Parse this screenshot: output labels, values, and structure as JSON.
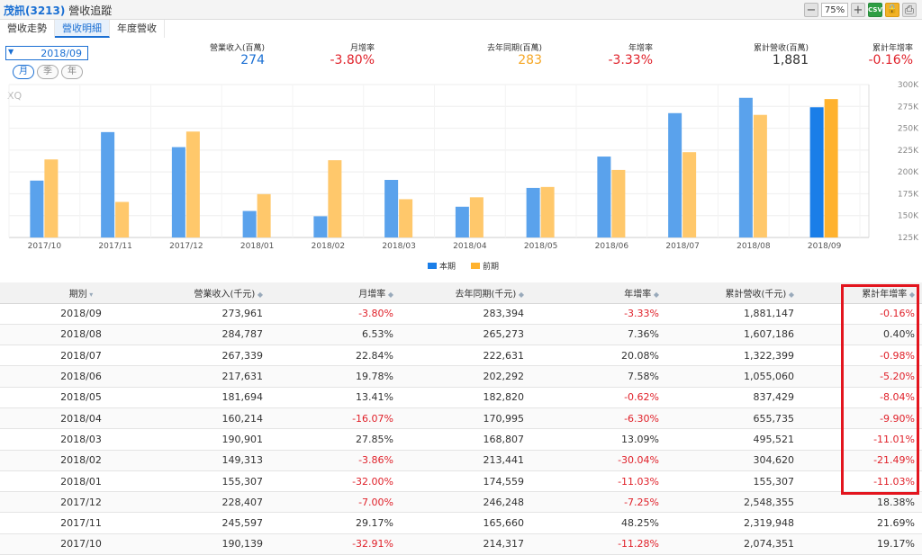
{
  "header": {
    "stock": "茂訊(3213)",
    "name": "營收追蹤",
    "zoom": "75%",
    "csv_label": "CSV"
  },
  "tabs": [
    {
      "label": "營收走勢"
    },
    {
      "label": "營收明細"
    },
    {
      "label": "年度營收"
    }
  ],
  "period": "2018/09",
  "freq": [
    "月",
    "季",
    "年"
  ],
  "stats": [
    {
      "label": "營業收入(百萬)",
      "value": "274",
      "color": "blue"
    },
    {
      "label": "月增率",
      "value": "-3.80%",
      "color": "red"
    },
    {
      "label": "去年同期(百萬)",
      "value": "283",
      "color": "orange"
    },
    {
      "label": "年增率",
      "value": "-3.33%",
      "color": "red"
    },
    {
      "label": "累計營收(百萬)",
      "value": "1,881",
      "color": "dark"
    },
    {
      "label": "累計年增率",
      "value": "-0.16%",
      "color": "red"
    }
  ],
  "chart_data": {
    "type": "bar",
    "categories": [
      "2017/10",
      "2017/11",
      "2017/12",
      "2018/01",
      "2018/02",
      "2018/03",
      "2018/04",
      "2018/05",
      "2018/06",
      "2018/07",
      "2018/08",
      "2018/09"
    ],
    "series": [
      {
        "name": "本期",
        "values": [
          190.1,
          245.6,
          228.4,
          155.3,
          149.3,
          190.9,
          160.2,
          181.7,
          217.6,
          267.3,
          284.8,
          274.0
        ],
        "color": "#5aa2ec"
      },
      {
        "name": "前期",
        "values": [
          214.3,
          165.7,
          246.2,
          174.6,
          213.4,
          168.8,
          171.0,
          182.8,
          202.3,
          222.6,
          265.3,
          283.4
        ],
        "color": "#ffc86b"
      }
    ],
    "ylim": [
      125,
      300
    ],
    "yticks": [
      "125K",
      "150K",
      "175K",
      "200K",
      "225K",
      "250K",
      "275K",
      "300K"
    ],
    "watermark": "XQ",
    "highlight_last": true,
    "legend_position": "bottom"
  },
  "table": {
    "headers": [
      "期別",
      "營業收入(千元)",
      "月增率",
      "去年同期(千元)",
      "年增率",
      "累計營收(千元)",
      "累計年增率"
    ],
    "rows": [
      [
        "2018/09",
        "273,961",
        "-3.80%",
        "283,394",
        "-3.33%",
        "1,881,147",
        "-0.16%"
      ],
      [
        "2018/08",
        "284,787",
        "6.53%",
        "265,273",
        "7.36%",
        "1,607,186",
        "0.40%"
      ],
      [
        "2018/07",
        "267,339",
        "22.84%",
        "222,631",
        "20.08%",
        "1,322,399",
        "-0.98%"
      ],
      [
        "2018/06",
        "217,631",
        "19.78%",
        "202,292",
        "7.58%",
        "1,055,060",
        "-5.20%"
      ],
      [
        "2018/05",
        "181,694",
        "13.41%",
        "182,820",
        "-0.62%",
        "837,429",
        "-8.04%"
      ],
      [
        "2018/04",
        "160,214",
        "-16.07%",
        "170,995",
        "-6.30%",
        "655,735",
        "-9.90%"
      ],
      [
        "2018/03",
        "190,901",
        "27.85%",
        "168,807",
        "13.09%",
        "495,521",
        "-11.01%"
      ],
      [
        "2018/02",
        "149,313",
        "-3.86%",
        "213,441",
        "-30.04%",
        "304,620",
        "-21.49%"
      ],
      [
        "2018/01",
        "155,307",
        "-32.00%",
        "174,559",
        "-11.03%",
        "155,307",
        "-11.03%"
      ],
      [
        "2017/12",
        "228,407",
        "-7.00%",
        "246,248",
        "-7.25%",
        "2,548,355",
        "18.38%"
      ],
      [
        "2017/11",
        "245,597",
        "29.17%",
        "165,660",
        "48.25%",
        "2,319,948",
        "21.69%"
      ],
      [
        "2017/10",
        "190,139",
        "-32.91%",
        "214,317",
        "-11.28%",
        "2,074,351",
        "19.17%"
      ]
    ]
  }
}
